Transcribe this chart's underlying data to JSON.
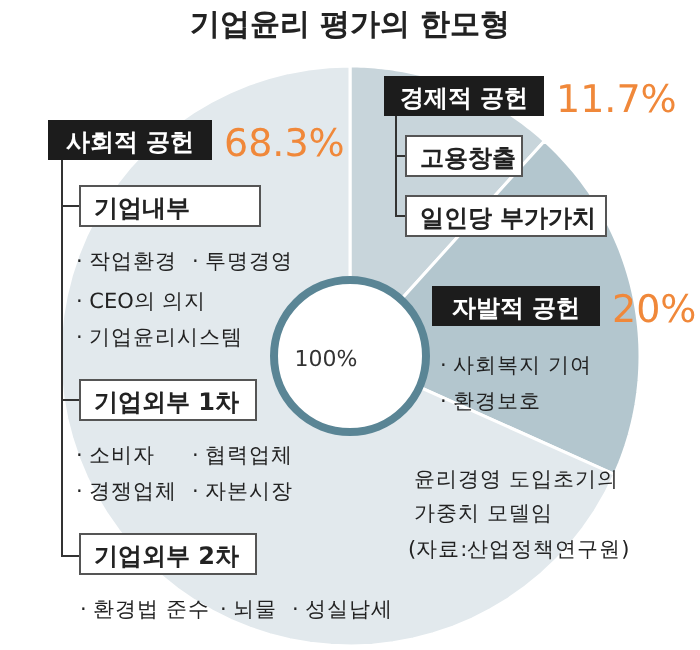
{
  "chart_data": {
    "type": "donut",
    "title": "기업윤리 평가의 한모형",
    "categories": [
      "사회적 공헌",
      "경제적 공헌",
      "자발적 공헌"
    ],
    "values": [
      68.3,
      11.7,
      20
    ],
    "colors": [
      "#e2e9ed",
      "#c8d5db",
      "#b3c6ce"
    ],
    "value_labels": [
      "68.3%",
      "11.7%",
      "20%"
    ],
    "annotations": [
      "기업내부",
      "· 작업환경",
      "· 투명경영",
      "· CEO의 의지",
      "· 기업윤리시스템",
      "기업외부 1차",
      "· 소비자",
      "· 협력업체",
      "· 경쟁업체",
      "· 자본시장",
      "기업외부 2차",
      "· 환경법 준수",
      "· 뇌물",
      "· 성실납세",
      "고용창출",
      "일인당 부가가치",
      "· 사회복지 기여",
      "· 환경보호",
      "100%",
      "윤리경영 도입초기의",
      "가중치 모델임",
      "(자료:산업정책연구원)"
    ]
  }
}
